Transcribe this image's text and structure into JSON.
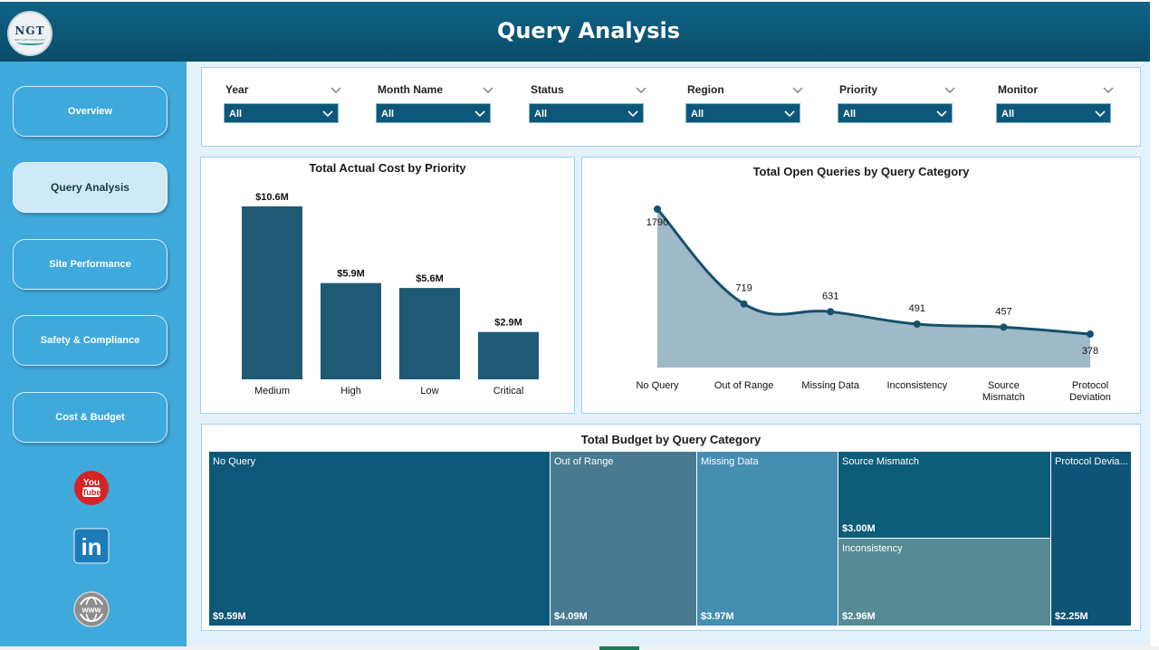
{
  "header": {
    "title": "Query Analysis",
    "logo_text": "NGT",
    "logo_sub": "NEXT GEN TEMPLATES"
  },
  "sidebar": {
    "items": [
      {
        "label": "Overview",
        "active": false
      },
      {
        "label": "Query Analysis",
        "active": true
      },
      {
        "label": "Site Performance",
        "active": false
      },
      {
        "label": "Safety & Compliance",
        "active": false
      },
      {
        "label": "Cost & Budget",
        "active": false
      }
    ],
    "social": [
      "youtube-icon",
      "linkedin-icon",
      "globe-icon"
    ],
    "youtube_text": {
      "top": "You",
      "bottom": "Tube"
    },
    "linkedin_text": "in"
  },
  "filters": [
    {
      "label": "Year",
      "value": "All"
    },
    {
      "label": "Month Name",
      "value": "All"
    },
    {
      "label": "Status",
      "value": "All"
    },
    {
      "label": "Region",
      "value": "All"
    },
    {
      "label": "Priority",
      "value": "All"
    },
    {
      "label": "Monitor",
      "value": "All"
    }
  ],
  "colors": {
    "bar": "#1e5a74",
    "area_fill": "#9eb9c7",
    "line": "#16506b",
    "treemap": [
      "#0d5878",
      "#4a7a90",
      "#468eb0",
      "#0d5c78",
      "#568a94",
      "#0e5478"
    ]
  },
  "chart_data": [
    {
      "type": "bar",
      "title": "Total Actual Cost by Priority",
      "categories": [
        "Medium",
        "High",
        "Low",
        "Critical"
      ],
      "values": [
        10.6,
        5.9,
        5.6,
        2.9
      ],
      "data_labels": [
        "$10.6M",
        "$5.9M",
        "$5.6M",
        "$2.9M"
      ],
      "unit": "$M",
      "ylim": [
        0,
        10.6
      ],
      "grid": false
    },
    {
      "type": "area",
      "title": "Total Open Queries by Query Category",
      "categories": [
        "No Query",
        "Out of Range",
        "Missing Data",
        "Inconsistency",
        "Source Mismatch",
        "Protocol Deviation"
      ],
      "values": [
        1790,
        719,
        631,
        491,
        457,
        378
      ],
      "grid": false
    },
    {
      "type": "treemap",
      "title": "Total Budget by Query Category",
      "categories": [
        "No Query",
        "Out of Range",
        "Missing Data",
        "Source Mismatch",
        "Inconsistency",
        "Protocol Deviation"
      ],
      "display_names": [
        "No Query",
        "Out of Range",
        "Missing Data",
        "Source Mismatch",
        "Inconsistency",
        "Protocol Devia..."
      ],
      "values": [
        9.59,
        4.09,
        3.97,
        3.0,
        2.96,
        2.25
      ],
      "data_labels": [
        "$9.59M",
        "$4.09M",
        "$3.97M",
        "$3.00M",
        "$2.96M",
        "$2.25M"
      ],
      "unit": "$M"
    }
  ]
}
